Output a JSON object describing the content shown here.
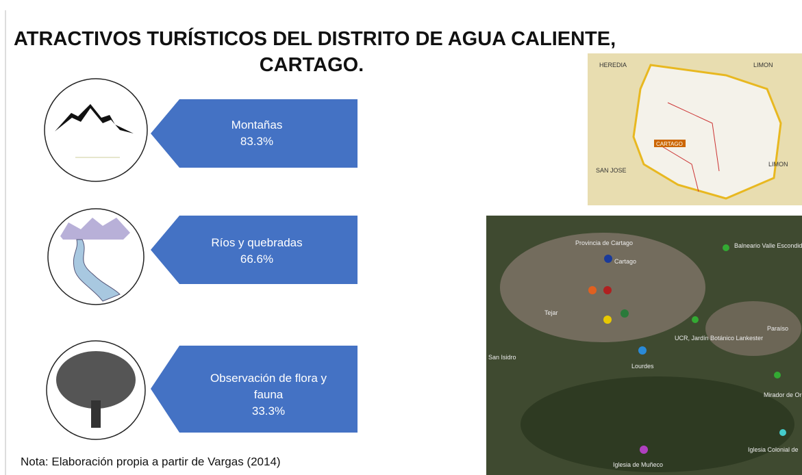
{
  "title": {
    "line1": "ATRACTIVOS TURÍSTICOS DEL DISTRITO DE AGUA CALIENTE,",
    "line2": "CARTAGO."
  },
  "items": [
    {
      "label": "Montañas",
      "value": "83.3%"
    },
    {
      "label": "Ríos y quebradas",
      "value": "66.6%"
    },
    {
      "label_lines": [
        "Observación de flora y",
        "fauna"
      ],
      "value": "33.3%"
    }
  ],
  "note": "Nota: Elaboración propia a partir de Vargas (2014)",
  "province_map": {
    "labels": [
      "HEREDIA",
      "LIMON",
      "SAN JOSE",
      "CARTAGO",
      "LIMON"
    ]
  },
  "satellite_map": {
    "labels": [
      "Provincia de Cartago",
      "Cartago",
      "Balneario Valle Escondido",
      "Tejar",
      "UCR, Jardín Botánico Lankester",
      "Paraíso",
      "San Isidro",
      "Lourdes",
      "Mirador de Orosi",
      "Iglesia Colonial de",
      "Iglesia de Muñeco"
    ]
  }
}
